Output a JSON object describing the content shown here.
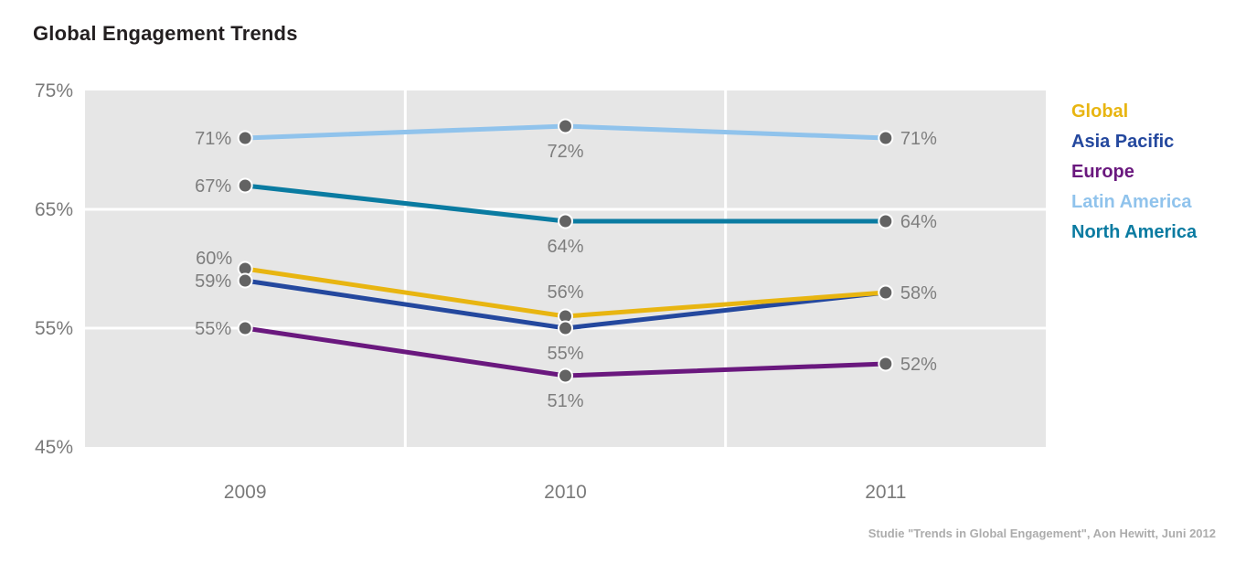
{
  "title": "Global Engagement Trends",
  "source_note": "Studie \"Trends in Global Engagement\", Aon Hewitt, Juni 2012",
  "chart_data": {
    "type": "line",
    "title": "Global Engagement Trends",
    "categories": [
      "2009",
      "2010",
      "2011"
    ],
    "unit": "%",
    "ylim": [
      45,
      75
    ],
    "yticks": [
      75,
      65,
      55,
      45
    ],
    "grid": true,
    "legend_position": "right",
    "series": [
      {
        "name": "Global",
        "color": "#e8b511",
        "values": [
          60,
          56,
          58
        ],
        "label_pos": [
          "left-up",
          "above",
          "right"
        ]
      },
      {
        "name": "Asia Pacific",
        "color": "#24489e",
        "values": [
          59,
          55,
          58
        ],
        "label_pos": [
          "left",
          "below",
          "none"
        ]
      },
      {
        "name": "Europe",
        "color": "#6a187e",
        "values": [
          55,
          51,
          52
        ],
        "label_pos": [
          "left",
          "below",
          "right"
        ]
      },
      {
        "name": "Latin America",
        "color": "#90c3ec",
        "values": [
          71,
          72,
          71
        ],
        "label_pos": [
          "left",
          "below",
          "right"
        ]
      },
      {
        "name": "North America",
        "color": "#0a7ba1",
        "values": [
          67,
          64,
          64
        ],
        "label_pos": [
          "left",
          "below",
          "right"
        ]
      }
    ],
    "style": {
      "plot_background": "#e6e6e6",
      "gridline_color": "#ffffff",
      "point_color": "#636363",
      "point_ring_color": "#ffffff",
      "data_label_color": "#7e7e7e",
      "axis_label_color": "#7a7a7a"
    }
  }
}
